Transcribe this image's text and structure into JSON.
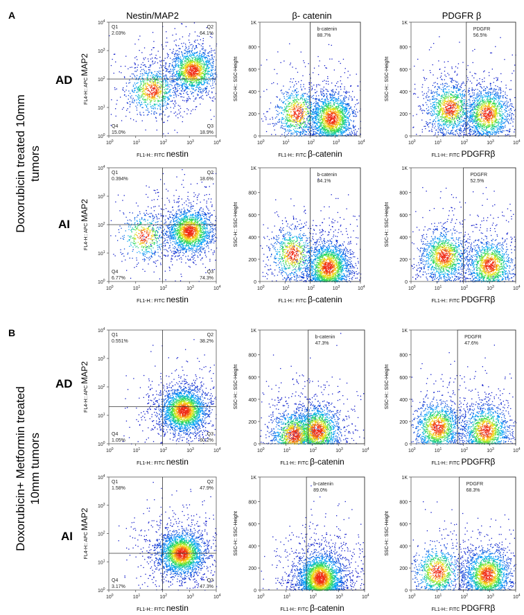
{
  "sections": [
    {
      "letter": "A",
      "title_lines": [
        "Doxorubicin treated 10mm",
        "tumors"
      ]
    },
    {
      "letter": "B",
      "title_lines": [
        "Doxorubicin+ Metformin treated",
        "10mm tumors"
      ]
    }
  ],
  "column_titles": [
    "Nestin/MAP2",
    "β- catenin",
    "PDGFR β"
  ],
  "row_labels": [
    "AD",
    "AI",
    "AD",
    "AI"
  ],
  "chart_data": [
    {
      "type": "scatter",
      "section": "A",
      "row": "AD",
      "marker": "nestin/MAP2",
      "xlabel": {
        "prefix": "FL1-H:: FITC",
        "main": "nestin"
      },
      "ylabel": {
        "prefix": "FL4-H:: APC",
        "main": "MAP2"
      },
      "xscale": "log",
      "yscale": "log",
      "xlim": [
        1,
        10000
      ],
      "ylim": [
        1,
        10000
      ],
      "gate": {
        "x": 100,
        "y": 100
      },
      "quadrants": [
        {
          "name": "Q1",
          "pct": "2.03%"
        },
        {
          "name": "Q2",
          "pct": "64.1%"
        },
        {
          "name": "Q3",
          "pct": "18.9%"
        },
        {
          "name": "Q4",
          "pct": "15.0%"
        }
      ],
      "clusters": [
        {
          "x": 1300,
          "y": 200,
          "weight": 0.65
        },
        {
          "x": 40,
          "y": 40,
          "weight": 0.35
        }
      ]
    },
    {
      "type": "scatter",
      "section": "A",
      "row": "AD",
      "marker": "b-catenin",
      "xlabel": {
        "prefix": "FL1-H:: FITC",
        "main": "β-catenin"
      },
      "ylabel": {
        "prefix": "SSC-H:: SSC-Height",
        "main": ""
      },
      "xscale": "log",
      "yscale": "linear",
      "xlim": [
        1,
        10000
      ],
      "ylim": [
        0,
        1023
      ],
      "gate": {
        "x": 100,
        "name": "b-catenin",
        "pct": "88.7%"
      },
      "clusters": [
        {
          "x": 700,
          "y": 160,
          "weight": 0.7
        },
        {
          "x": 30,
          "y": 210,
          "weight": 0.3
        }
      ]
    },
    {
      "type": "scatter",
      "section": "A",
      "row": "AD",
      "marker": "PDGFR",
      "xlabel": {
        "prefix": "FL1-H:: FITC",
        "main": "PDGFRβ"
      },
      "ylabel": {
        "prefix": "SSC-H:: SSC-Height",
        "main": ""
      },
      "xscale": "log",
      "yscale": "linear",
      "xlim": [
        1,
        10000
      ],
      "ylim": [
        0,
        1023
      ],
      "gate": {
        "x": 130,
        "name": "PDGFR",
        "pct": "56.5%"
      },
      "clusters": [
        {
          "x": 800,
          "y": 200,
          "weight": 0.55
        },
        {
          "x": 30,
          "y": 250,
          "weight": 0.45
        }
      ]
    },
    {
      "type": "scatter",
      "section": "A",
      "row": "AI",
      "marker": "nestin/MAP2",
      "xlabel": {
        "prefix": "FL1-H:: FITC",
        "main": "nestin"
      },
      "ylabel": {
        "prefix": "FL4-H:: APC",
        "main": "MAP2"
      },
      "xscale": "log",
      "yscale": "log",
      "xlim": [
        1,
        10000
      ],
      "ylim": [
        1,
        10000
      ],
      "gate": {
        "x": 100,
        "y": 100
      },
      "quadrants": [
        {
          "name": "Q1",
          "pct": "0.394%"
        },
        {
          "name": "Q2",
          "pct": "18.6%"
        },
        {
          "name": "Q3",
          "pct": "74.3%"
        },
        {
          "name": "Q4",
          "pct": "6.77%"
        }
      ],
      "clusters": [
        {
          "x": 1000,
          "y": 60,
          "weight": 0.8
        },
        {
          "x": 20,
          "y": 40,
          "weight": 0.2
        }
      ]
    },
    {
      "type": "scatter",
      "section": "A",
      "row": "AI",
      "marker": "b-catenin",
      "xlabel": {
        "prefix": "FL1-H:: FITC",
        "main": "β-catenin"
      },
      "ylabel": {
        "prefix": "SSC-H:: SSC-Height",
        "main": ""
      },
      "xscale": "log",
      "yscale": "linear",
      "xlim": [
        1,
        10000
      ],
      "ylim": [
        0,
        1023
      ],
      "gate": {
        "x": 100,
        "name": "b-catenin",
        "pct": "84.1%"
      },
      "clusters": [
        {
          "x": 500,
          "y": 130,
          "weight": 0.7
        },
        {
          "x": 20,
          "y": 250,
          "weight": 0.3
        }
      ]
    },
    {
      "type": "scatter",
      "section": "A",
      "row": "AI",
      "marker": "PDGFR",
      "xlabel": {
        "prefix": "FL1-H:: FITC",
        "main": "PDGFRβ"
      },
      "ylabel": {
        "prefix": "SSC-H:: SSC-Height",
        "main": ""
      },
      "xscale": "log",
      "yscale": "linear",
      "xlim": [
        1,
        10000
      ],
      "ylim": [
        0,
        1023
      ],
      "gate": {
        "x": 100,
        "name": "PDGFR",
        "pct": "52.5%"
      },
      "clusters": [
        {
          "x": 1000,
          "y": 150,
          "weight": 0.5
        },
        {
          "x": 18,
          "y": 230,
          "weight": 0.5
        }
      ]
    },
    {
      "type": "scatter",
      "section": "B",
      "row": "AD",
      "marker": "nestin/MAP2",
      "xlabel": {
        "prefix": "FL1-H:: FITC",
        "main": "nestin"
      },
      "ylabel": {
        "prefix": "FL4-H:: APC",
        "main": "MAP2"
      },
      "xscale": "log",
      "yscale": "log",
      "xlim": [
        1,
        10000
      ],
      "ylim": [
        1,
        10000
      ],
      "gate": {
        "x": 100,
        "y": 20
      },
      "quadrants": [
        {
          "name": "Q1",
          "pct": "0.551%"
        },
        {
          "name": "Q2",
          "pct": "38.2%"
        },
        {
          "name": "Q3",
          "pct": "60.2%"
        },
        {
          "name": "Q4",
          "pct": "1.05%"
        }
      ],
      "clusters": [
        {
          "x": 600,
          "y": 15,
          "weight": 1.0
        }
      ]
    },
    {
      "type": "scatter",
      "section": "B",
      "row": "AD",
      "marker": "b-catenin",
      "xlabel": {
        "prefix": "FL1-H:: FITC",
        "main": "β-catenin"
      },
      "ylabel": {
        "prefix": "SSC-H:: SSC-Height",
        "main": ""
      },
      "xscale": "log",
      "yscale": "linear",
      "xlim": [
        1,
        10000
      ],
      "ylim": [
        0,
        1023
      ],
      "gate": {
        "x": 70,
        "name": "b-catenin",
        "pct": "47.3%"
      },
      "clusters": [
        {
          "x": 150,
          "y": 120,
          "weight": 0.6
        },
        {
          "x": 20,
          "y": 80,
          "weight": 0.4
        }
      ]
    },
    {
      "type": "scatter",
      "section": "B",
      "row": "AD",
      "marker": "PDGFR",
      "xlabel": {
        "prefix": "FL1-H:: FITC",
        "main": "PDGFRβ"
      },
      "ylabel": {
        "prefix": "SSC-H:: SSC-Height",
        "main": ""
      },
      "xscale": "log",
      "yscale": "linear",
      "xlim": [
        1,
        10000
      ],
      "ylim": [
        0,
        1023
      ],
      "gate": {
        "x": 60,
        "name": "PDGFR",
        "pct": "47.6%"
      },
      "clusters": [
        {
          "x": 10,
          "y": 150,
          "weight": 0.5
        },
        {
          "x": 700,
          "y": 120,
          "weight": 0.5
        }
      ]
    },
    {
      "type": "scatter",
      "section": "B",
      "row": "AI",
      "marker": "nestin/MAP2",
      "xlabel": {
        "prefix": "FL1-H:: FITC",
        "main": "nestin"
      },
      "ylabel": {
        "prefix": "FL4-H:: APC",
        "main": "MAP2"
      },
      "xscale": "log",
      "yscale": "log",
      "xlim": [
        1,
        10000
      ],
      "ylim": [
        1,
        10000
      ],
      "gate": {
        "x": 100,
        "y": 20
      },
      "quadrants": [
        {
          "name": "Q1",
          "pct": "1.58%"
        },
        {
          "name": "Q2",
          "pct": "47.9%"
        },
        {
          "name": "Q3",
          "pct": "47.3%"
        },
        {
          "name": "Q4",
          "pct": "3.17%"
        }
      ],
      "clusters": [
        {
          "x": 500,
          "y": 20,
          "weight": 1.0
        }
      ]
    },
    {
      "type": "scatter",
      "section": "B",
      "row": "AI",
      "marker": "b-catenin",
      "xlabel": {
        "prefix": "FL1-H:: FITC",
        "main": "β-catenin"
      },
      "ylabel": {
        "prefix": "SSC-H:: SSC-Height",
        "main": ""
      },
      "xscale": "log",
      "yscale": "linear",
      "xlim": [
        1,
        10000
      ],
      "ylim": [
        0,
        1023
      ],
      "gate": {
        "x": 60,
        "name": "b-catenin",
        "pct": "89.0%"
      },
      "clusters": [
        {
          "x": 200,
          "y": 110,
          "weight": 1.0
        }
      ]
    },
    {
      "type": "scatter",
      "section": "B",
      "row": "AI",
      "marker": "PDGFR",
      "xlabel": {
        "prefix": "FL1-H:: FITC",
        "main": "PDGFRβ"
      },
      "ylabel": {
        "prefix": "SSC-H:: SSC-Height",
        "main": ""
      },
      "xscale": "log",
      "yscale": "linear",
      "xlim": [
        1,
        10000
      ],
      "ylim": [
        0,
        1023
      ],
      "gate": {
        "x": 70,
        "name": "PDGFR",
        "pct": "68.3%"
      },
      "clusters": [
        {
          "x": 10,
          "y": 170,
          "weight": 0.35
        },
        {
          "x": 800,
          "y": 140,
          "weight": 0.65
        }
      ]
    }
  ]
}
